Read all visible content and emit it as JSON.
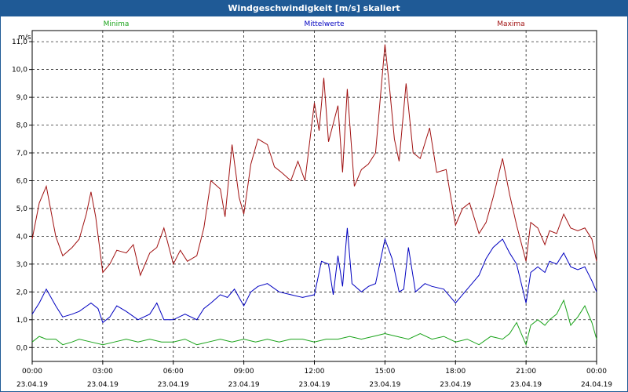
{
  "window": {
    "title": "Windgeschwindigkeit [m/s] skaliert"
  },
  "colors": {
    "minima": "#1aa31a",
    "mittel": "#0000c0",
    "maxima": "#a01010",
    "grid": "#000000",
    "titlebar": "#1f5a96"
  },
  "chart_data": {
    "type": "line",
    "title": "Windgeschwindigkeit [m/s] skaliert",
    "ylabel": "m/s",
    "ylim": [
      -0.5,
      11.4
    ],
    "y_ticks": [
      "0,0",
      "1,0",
      "2,0",
      "3,0",
      "4,0",
      "5,0",
      "6,0",
      "7,0",
      "8,0",
      "9,0",
      "10,0",
      "11,0"
    ],
    "xlim": [
      0,
      24
    ],
    "x_ticks": [
      {
        "x": 0,
        "time": "00:00",
        "date": "23.04.19"
      },
      {
        "x": 3,
        "time": "03:00",
        "date": "23.04.19"
      },
      {
        "x": 6,
        "time": "06:00",
        "date": "23.04.19"
      },
      {
        "x": 9,
        "time": "09:00",
        "date": "23.04.19"
      },
      {
        "x": 12,
        "time": "12:00",
        "date": "23.04.19"
      },
      {
        "x": 15,
        "time": "15:00",
        "date": "23.04.19"
      },
      {
        "x": 18,
        "time": "18:00",
        "date": "23.04.19"
      },
      {
        "x": 21,
        "time": "21:00",
        "date": "23.04.19"
      },
      {
        "x": 24,
        "time": "00:00",
        "date": "24.04.19"
      }
    ],
    "grid": true,
    "legend": "top",
    "series": [
      {
        "name": "Minima",
        "color": "#1aa31a",
        "points": [
          [
            0,
            0.2
          ],
          [
            0.3,
            0.4
          ],
          [
            0.6,
            0.3
          ],
          [
            1,
            0.3
          ],
          [
            1.3,
            0.1
          ],
          [
            1.7,
            0.2
          ],
          [
            2,
            0.3
          ],
          [
            2.5,
            0.2
          ],
          [
            3,
            0.1
          ],
          [
            3.5,
            0.2
          ],
          [
            4,
            0.3
          ],
          [
            4.5,
            0.2
          ],
          [
            5,
            0.3
          ],
          [
            5.5,
            0.2
          ],
          [
            6,
            0.2
          ],
          [
            6.5,
            0.3
          ],
          [
            7,
            0.1
          ],
          [
            7.5,
            0.2
          ],
          [
            8,
            0.3
          ],
          [
            8.5,
            0.2
          ],
          [
            9,
            0.3
          ],
          [
            9.5,
            0.2
          ],
          [
            10,
            0.3
          ],
          [
            10.5,
            0.2
          ],
          [
            11,
            0.3
          ],
          [
            11.5,
            0.3
          ],
          [
            12,
            0.2
          ],
          [
            12.5,
            0.3
          ],
          [
            13,
            0.3
          ],
          [
            13.5,
            0.4
          ],
          [
            14,
            0.3
          ],
          [
            14.5,
            0.4
          ],
          [
            15,
            0.5
          ],
          [
            15.5,
            0.4
          ],
          [
            16,
            0.3
          ],
          [
            16.5,
            0.5
          ],
          [
            17,
            0.3
          ],
          [
            17.5,
            0.4
          ],
          [
            18,
            0.2
          ],
          [
            18.5,
            0.3
          ],
          [
            19,
            0.1
          ],
          [
            19.5,
            0.4
          ],
          [
            20,
            0.3
          ],
          [
            20.3,
            0.5
          ],
          [
            20.6,
            0.9
          ],
          [
            21,
            0.1
          ],
          [
            21.2,
            0.8
          ],
          [
            21.5,
            1.0
          ],
          [
            21.8,
            0.8
          ],
          [
            22,
            1.0
          ],
          [
            22.3,
            1.2
          ],
          [
            22.6,
            1.7
          ],
          [
            22.9,
            0.8
          ],
          [
            23.2,
            1.1
          ],
          [
            23.5,
            1.5
          ],
          [
            23.8,
            0.9
          ],
          [
            24,
            0.3
          ]
        ]
      },
      {
        "name": "Mittelwerte",
        "color": "#0000c0",
        "points": [
          [
            0,
            1.2
          ],
          [
            0.3,
            1.6
          ],
          [
            0.6,
            2.1
          ],
          [
            1,
            1.5
          ],
          [
            1.3,
            1.1
          ],
          [
            1.7,
            1.2
          ],
          [
            2,
            1.3
          ],
          [
            2.5,
            1.6
          ],
          [
            2.8,
            1.4
          ],
          [
            3,
            0.9
          ],
          [
            3.3,
            1.1
          ],
          [
            3.6,
            1.5
          ],
          [
            4,
            1.3
          ],
          [
            4.5,
            1.0
          ],
          [
            5,
            1.2
          ],
          [
            5.3,
            1.6
          ],
          [
            5.6,
            1.0
          ],
          [
            6,
            1.0
          ],
          [
            6.5,
            1.2
          ],
          [
            7,
            1.0
          ],
          [
            7.3,
            1.4
          ],
          [
            7.6,
            1.6
          ],
          [
            8,
            1.9
          ],
          [
            8.3,
            1.8
          ],
          [
            8.6,
            2.1
          ],
          [
            9,
            1.5
          ],
          [
            9.3,
            2.0
          ],
          [
            9.6,
            2.2
          ],
          [
            10,
            2.3
          ],
          [
            10.5,
            2.0
          ],
          [
            11,
            1.9
          ],
          [
            11.5,
            1.8
          ],
          [
            12,
            1.9
          ],
          [
            12.3,
            3.1
          ],
          [
            12.6,
            3.0
          ],
          [
            12.8,
            1.9
          ],
          [
            13,
            3.3
          ],
          [
            13.2,
            2.2
          ],
          [
            13.4,
            4.3
          ],
          [
            13.6,
            2.3
          ],
          [
            14,
            2.0
          ],
          [
            14.3,
            2.2
          ],
          [
            14.6,
            2.3
          ],
          [
            15,
            3.9
          ],
          [
            15.3,
            3.2
          ],
          [
            15.6,
            2.0
          ],
          [
            15.8,
            2.1
          ],
          [
            16,
            3.6
          ],
          [
            16.3,
            2.0
          ],
          [
            16.7,
            2.3
          ],
          [
            17,
            2.2
          ],
          [
            17.5,
            2.1
          ],
          [
            18,
            1.6
          ],
          [
            18.3,
            1.9
          ],
          [
            18.6,
            2.2
          ],
          [
            19,
            2.6
          ],
          [
            19.3,
            3.2
          ],
          [
            19.6,
            3.6
          ],
          [
            20,
            3.9
          ],
          [
            20.3,
            3.4
          ],
          [
            20.6,
            3.0
          ],
          [
            21,
            1.6
          ],
          [
            21.2,
            2.7
          ],
          [
            21.5,
            2.9
          ],
          [
            21.8,
            2.7
          ],
          [
            22,
            3.1
          ],
          [
            22.3,
            3.0
          ],
          [
            22.6,
            3.4
          ],
          [
            22.9,
            2.9
          ],
          [
            23.2,
            2.8
          ],
          [
            23.5,
            2.9
          ],
          [
            23.8,
            2.4
          ],
          [
            24,
            2.0
          ]
        ]
      },
      {
        "name": "Maxima",
        "color": "#a01010",
        "points": [
          [
            0,
            3.9
          ],
          [
            0.3,
            5.2
          ],
          [
            0.6,
            5.8
          ],
          [
            1,
            4.0
          ],
          [
            1.3,
            3.3
          ],
          [
            1.7,
            3.6
          ],
          [
            2,
            3.9
          ],
          [
            2.3,
            4.8
          ],
          [
            2.5,
            5.6
          ],
          [
            2.7,
            4.7
          ],
          [
            3,
            2.7
          ],
          [
            3.3,
            3.0
          ],
          [
            3.6,
            3.5
          ],
          [
            4,
            3.4
          ],
          [
            4.3,
            3.7
          ],
          [
            4.6,
            2.6
          ],
          [
            5,
            3.4
          ],
          [
            5.3,
            3.6
          ],
          [
            5.6,
            4.3
          ],
          [
            6,
            3.0
          ],
          [
            6.3,
            3.5
          ],
          [
            6.6,
            3.1
          ],
          [
            7,
            3.3
          ],
          [
            7.3,
            4.3
          ],
          [
            7.6,
            6.0
          ],
          [
            8,
            5.7
          ],
          [
            8.2,
            4.7
          ],
          [
            8.5,
            7.3
          ],
          [
            8.8,
            5.4
          ],
          [
            9,
            4.8
          ],
          [
            9.3,
            6.6
          ],
          [
            9.6,
            7.5
          ],
          [
            10,
            7.3
          ],
          [
            10.3,
            6.5
          ],
          [
            10.6,
            6.3
          ],
          [
            11,
            6.0
          ],
          [
            11.3,
            6.7
          ],
          [
            11.6,
            6.0
          ],
          [
            12,
            8.8
          ],
          [
            12.2,
            7.8
          ],
          [
            12.4,
            9.7
          ],
          [
            12.6,
            7.4
          ],
          [
            13,
            8.7
          ],
          [
            13.2,
            6.3
          ],
          [
            13.4,
            9.3
          ],
          [
            13.7,
            5.8
          ],
          [
            14,
            6.4
          ],
          [
            14.3,
            6.6
          ],
          [
            14.6,
            7.0
          ],
          [
            15,
            10.9
          ],
          [
            15.2,
            9.3
          ],
          [
            15.4,
            7.5
          ],
          [
            15.6,
            6.7
          ],
          [
            15.9,
            9.5
          ],
          [
            16.2,
            7.0
          ],
          [
            16.5,
            6.8
          ],
          [
            16.9,
            7.9
          ],
          [
            17.2,
            6.3
          ],
          [
            17.6,
            6.4
          ],
          [
            18,
            4.4
          ],
          [
            18.3,
            5.0
          ],
          [
            18.6,
            5.2
          ],
          [
            19,
            4.1
          ],
          [
            19.3,
            4.5
          ],
          [
            19.6,
            5.4
          ],
          [
            20,
            6.8
          ],
          [
            20.3,
            5.5
          ],
          [
            20.6,
            4.4
          ],
          [
            21,
            3.1
          ],
          [
            21.2,
            4.5
          ],
          [
            21.5,
            4.3
          ],
          [
            21.8,
            3.7
          ],
          [
            22,
            4.2
          ],
          [
            22.3,
            4.1
          ],
          [
            22.6,
            4.8
          ],
          [
            22.9,
            4.3
          ],
          [
            23.2,
            4.2
          ],
          [
            23.5,
            4.3
          ],
          [
            23.8,
            3.9
          ],
          [
            24,
            3.1
          ]
        ]
      }
    ]
  }
}
